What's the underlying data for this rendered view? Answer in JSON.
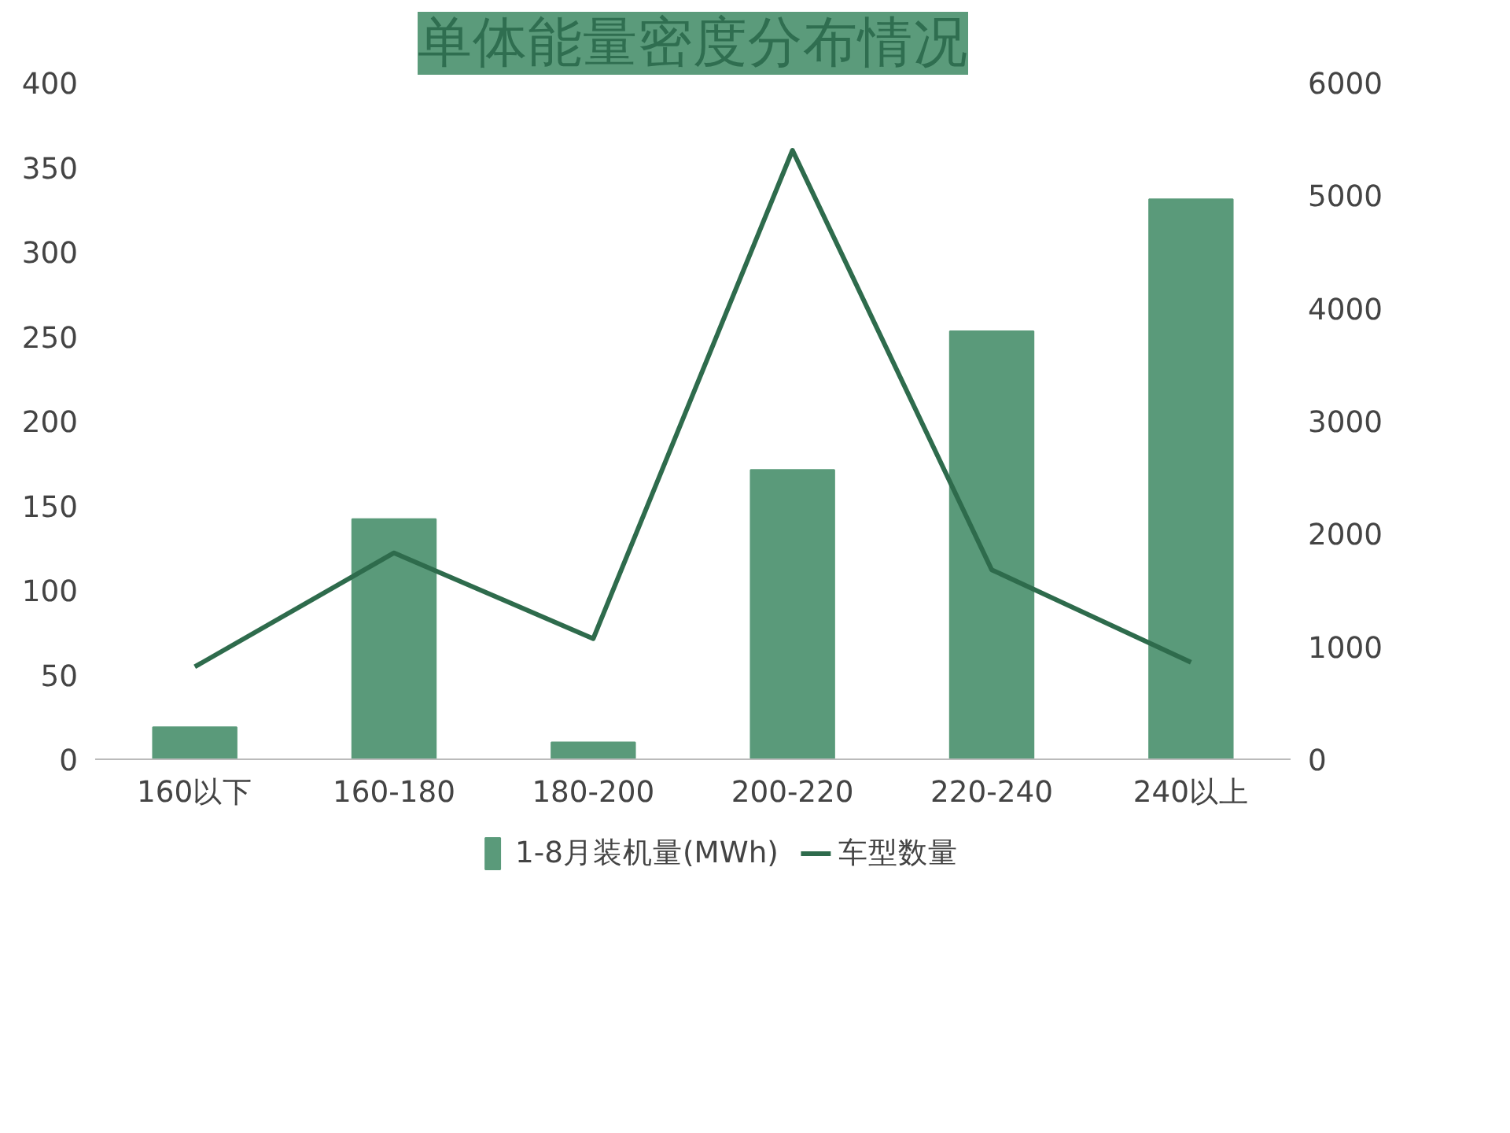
{
  "chart_data": {
    "type": "bar",
    "title": "单体能量密度分布情况",
    "categories": [
      "160以下",
      "160-180",
      "180-200",
      "200-220",
      "220-240",
      "240以上"
    ],
    "series": [
      {
        "name": "1-8月装机量(MWh)",
        "color": "#5a9a7a",
        "values": [
          19,
          142,
          10,
          171,
          253,
          331
        ]
      },
      {
        "name": "车型数量",
        "type": "line",
        "axis": "y2",
        "color": "#2e6b4c",
        "values": [
          820,
          1830,
          1070,
          5400,
          1680,
          860
        ]
      }
    ],
    "ylim": [
      0,
      400
    ],
    "yticks": [
      0,
      50,
      100,
      150,
      200,
      250,
      300,
      350,
      400
    ],
    "y2lim": [
      0,
      6000
    ],
    "y2ticks": [
      0,
      1000,
      2000,
      3000,
      4000,
      5000,
      6000
    ],
    "legend": "bottom"
  }
}
